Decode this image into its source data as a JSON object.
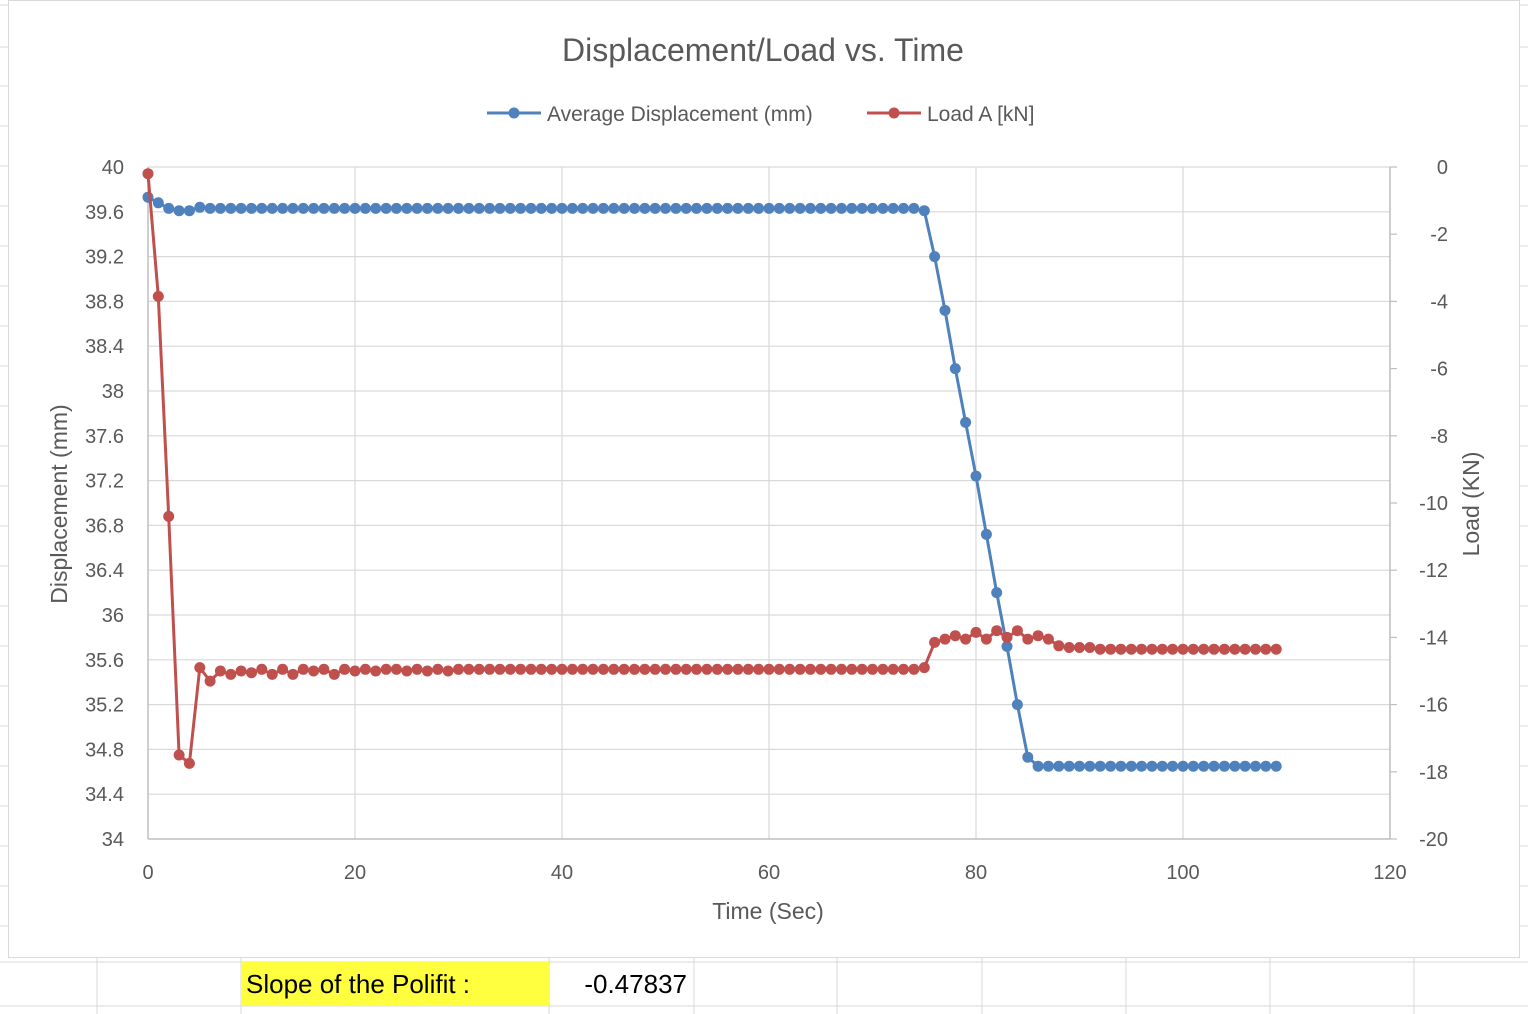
{
  "chart_data": {
    "type": "line",
    "title": "Displacement/Load vs. Time",
    "xlabel": "Time (Sec)",
    "ylabel": "Displacement (mm)",
    "y2label": "Load (KN)",
    "xlim": [
      0,
      120
    ],
    "ylim": [
      34,
      40
    ],
    "y2lim": [
      -20,
      0
    ],
    "x_ticks": [
      "0",
      "20",
      "40",
      "60",
      "80",
      "100",
      "120"
    ],
    "y_ticks": [
      "34",
      "34.4",
      "34.8",
      "35.2",
      "35.6",
      "36",
      "36.4",
      "36.8",
      "37.2",
      "37.6",
      "38",
      "38.4",
      "38.8",
      "39.2",
      "39.6",
      "40"
    ],
    "y2_ticks": [
      "-20",
      "-18",
      "-16",
      "-14",
      "-12",
      "-10",
      "-8",
      "-6",
      "-4",
      "-2",
      "0"
    ],
    "grid": true,
    "legend_position": "top",
    "series": [
      {
        "name": "Average Displacement (mm)",
        "axis": "left",
        "color": "#4f81bd",
        "x": [
          0,
          1,
          2,
          3,
          4,
          5,
          6,
          7,
          8,
          9,
          10,
          11,
          12,
          13,
          14,
          15,
          16,
          17,
          18,
          19,
          20,
          21,
          22,
          23,
          24,
          25,
          26,
          27,
          28,
          29,
          30,
          31,
          32,
          33,
          34,
          35,
          36,
          37,
          38,
          39,
          40,
          41,
          42,
          43,
          44,
          45,
          46,
          47,
          48,
          49,
          50,
          51,
          52,
          53,
          54,
          55,
          56,
          57,
          58,
          59,
          60,
          61,
          62,
          63,
          64,
          65,
          66,
          67,
          68,
          69,
          70,
          71,
          72,
          73,
          74,
          75,
          76,
          77,
          78,
          79,
          80,
          81,
          82,
          83,
          84,
          85,
          86,
          87,
          88,
          89,
          90,
          91,
          92,
          93,
          94,
          95,
          96,
          97,
          98,
          99,
          100,
          101,
          102,
          103,
          104,
          105,
          106,
          107,
          108,
          109
        ],
        "values": [
          39.73,
          39.68,
          39.63,
          39.61,
          39.61,
          39.64,
          39.63,
          39.63,
          39.63,
          39.63,
          39.63,
          39.63,
          39.63,
          39.63,
          39.63,
          39.63,
          39.63,
          39.63,
          39.63,
          39.63,
          39.63,
          39.63,
          39.63,
          39.63,
          39.63,
          39.63,
          39.63,
          39.63,
          39.63,
          39.63,
          39.63,
          39.63,
          39.63,
          39.63,
          39.63,
          39.63,
          39.63,
          39.63,
          39.63,
          39.63,
          39.63,
          39.63,
          39.63,
          39.63,
          39.63,
          39.63,
          39.63,
          39.63,
          39.63,
          39.63,
          39.63,
          39.63,
          39.63,
          39.63,
          39.63,
          39.63,
          39.63,
          39.63,
          39.63,
          39.63,
          39.63,
          39.63,
          39.63,
          39.63,
          39.63,
          39.63,
          39.63,
          39.63,
          39.63,
          39.63,
          39.63,
          39.63,
          39.63,
          39.63,
          39.63,
          39.61,
          39.2,
          38.72,
          38.2,
          37.72,
          37.24,
          36.72,
          36.2,
          35.72,
          35.2,
          34.73,
          34.65,
          34.65,
          34.65,
          34.65,
          34.65,
          34.65,
          34.65,
          34.65,
          34.65,
          34.65,
          34.65,
          34.65,
          34.65,
          34.65,
          34.65,
          34.65,
          34.65,
          34.65,
          34.65,
          34.65,
          34.65,
          34.65,
          34.65,
          34.65
        ]
      },
      {
        "name": "Load A [kN]",
        "axis": "right",
        "color": "#c0504d",
        "x": [
          0,
          1,
          2,
          3,
          4,
          5,
          6,
          7,
          8,
          9,
          10,
          11,
          12,
          13,
          14,
          15,
          16,
          17,
          18,
          19,
          20,
          21,
          22,
          23,
          24,
          25,
          26,
          27,
          28,
          29,
          30,
          31,
          32,
          33,
          34,
          35,
          36,
          37,
          38,
          39,
          40,
          41,
          42,
          43,
          44,
          45,
          46,
          47,
          48,
          49,
          50,
          51,
          52,
          53,
          54,
          55,
          56,
          57,
          58,
          59,
          60,
          61,
          62,
          63,
          64,
          65,
          66,
          67,
          68,
          69,
          70,
          71,
          72,
          73,
          74,
          75,
          76,
          77,
          78,
          79,
          80,
          81,
          82,
          83,
          84,
          85,
          86,
          87,
          88,
          89,
          90,
          91,
          92,
          93,
          94,
          95,
          96,
          97,
          98,
          99,
          100,
          101,
          102,
          103,
          104,
          105,
          106,
          107,
          108,
          109
        ],
        "values": [
          -0.2,
          -3.85,
          -10.4,
          -17.5,
          -17.75,
          -14.9,
          -15.3,
          -15.0,
          -15.1,
          -15.0,
          -15.05,
          -14.95,
          -15.1,
          -14.95,
          -15.1,
          -14.95,
          -15.0,
          -14.95,
          -15.1,
          -14.95,
          -15.0,
          -14.95,
          -15.0,
          -14.95,
          -14.95,
          -15.0,
          -14.95,
          -15.0,
          -14.95,
          -15.0,
          -14.95,
          -14.95,
          -14.95,
          -14.95,
          -14.95,
          -14.95,
          -14.95,
          -14.95,
          -14.95,
          -14.95,
          -14.95,
          -14.95,
          -14.95,
          -14.95,
          -14.95,
          -14.95,
          -14.95,
          -14.95,
          -14.95,
          -14.95,
          -14.95,
          -14.95,
          -14.95,
          -14.95,
          -14.95,
          -14.95,
          -14.95,
          -14.95,
          -14.95,
          -14.95,
          -14.95,
          -14.95,
          -14.95,
          -14.95,
          -14.95,
          -14.95,
          -14.95,
          -14.95,
          -14.95,
          -14.95,
          -14.95,
          -14.95,
          -14.95,
          -14.95,
          -14.95,
          -14.9,
          -14.15,
          -14.05,
          -13.95,
          -14.05,
          -13.85,
          -14.05,
          -13.8,
          -14.0,
          -13.8,
          -14.05,
          -13.95,
          -14.05,
          -14.25,
          -14.3,
          -14.3,
          -14.3,
          -14.35,
          -14.35,
          -14.35,
          -14.35,
          -14.35,
          -14.35,
          -14.35,
          -14.35,
          -14.35,
          -14.35,
          -14.35,
          -14.35,
          -14.35,
          -14.35,
          -14.35,
          -14.35,
          -14.35,
          -14.35
        ]
      }
    ]
  },
  "sheet": {
    "slope_label": "Slope of the Polifit :",
    "slope_value": "-0.47837",
    "highlight_color": "#ffff3f"
  }
}
